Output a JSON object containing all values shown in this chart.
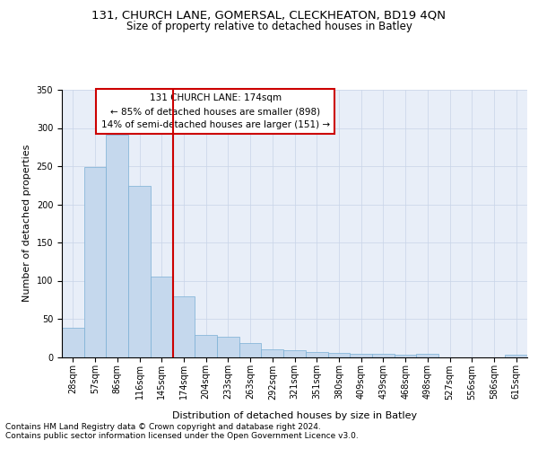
{
  "title1": "131, CHURCH LANE, GOMERSAL, CLECKHEATON, BD19 4QN",
  "title2": "Size of property relative to detached houses in Batley",
  "xlabel": "Distribution of detached houses by size in Batley",
  "ylabel": "Number of detached properties",
  "footnote1": "Contains HM Land Registry data © Crown copyright and database right 2024.",
  "footnote2": "Contains public sector information licensed under the Open Government Licence v3.0.",
  "annotation_line1": "131 CHURCH LANE: 174sqm",
  "annotation_line2": "← 85% of detached houses are smaller (898)",
  "annotation_line3": "14% of semi-detached houses are larger (151) →",
  "bar_categories": [
    "28sqm",
    "57sqm",
    "86sqm",
    "116sqm",
    "145sqm",
    "174sqm",
    "204sqm",
    "233sqm",
    "263sqm",
    "292sqm",
    "321sqm",
    "351sqm",
    "380sqm",
    "409sqm",
    "439sqm",
    "468sqm",
    "498sqm",
    "527sqm",
    "556sqm",
    "586sqm",
    "615sqm"
  ],
  "bar_values": [
    38,
    249,
    291,
    224,
    105,
    79,
    29,
    27,
    18,
    10,
    9,
    6,
    5,
    4,
    4,
    3,
    4,
    0,
    0,
    0,
    3
  ],
  "bar_color": "#c5d8ed",
  "bar_edge_color": "#7aafd4",
  "vline_color": "#cc0000",
  "vline_x_index": 4,
  "ylim_max": 350,
  "yticks": [
    0,
    50,
    100,
    150,
    200,
    250,
    300,
    350
  ],
  "grid_color": "#c8d4e8",
  "bg_color": "#e8eef8",
  "title1_fontsize": 9.5,
  "title2_fontsize": 8.5,
  "axis_label_fontsize": 8,
  "tick_fontsize": 7,
  "annotation_fontsize": 7.5,
  "footnote_fontsize": 6.5
}
